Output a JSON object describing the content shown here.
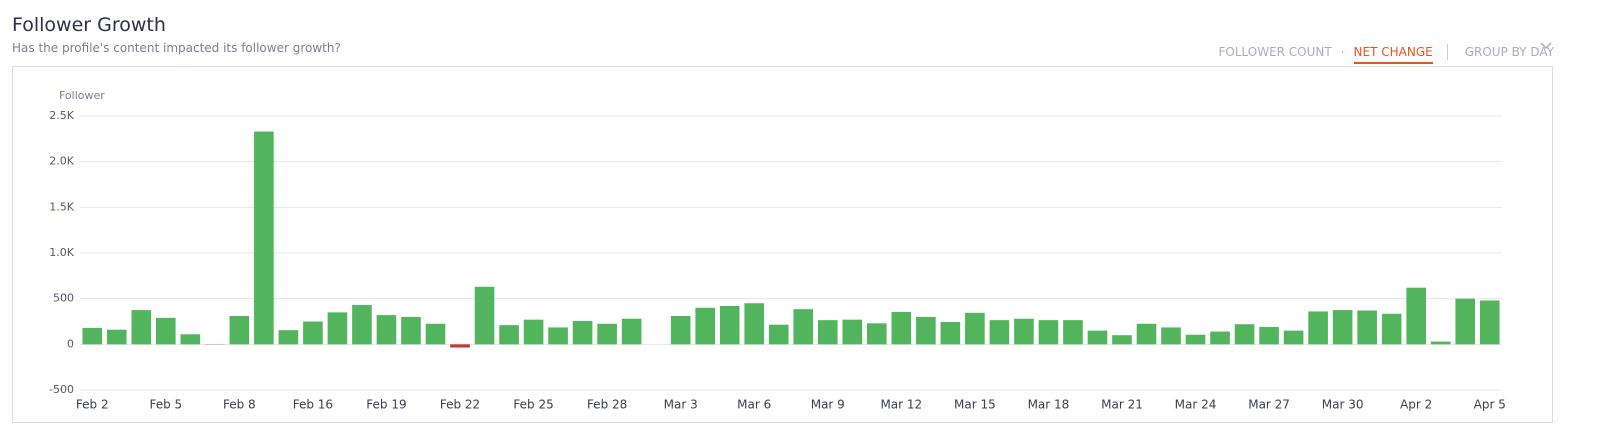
{
  "header": {
    "title": "Follower Growth",
    "subtitle": "Has the profile's content impacted its follower growth?"
  },
  "controls": [
    "FOLLOWER COUNT",
    "·",
    "NET CHANGE",
    "GROUP BY DAY"
  ],
  "chart_data": {
    "type": "bar",
    "y_label": "Follower",
    "categories": [
      "Feb 2",
      null,
      null,
      "Feb 5",
      null,
      null,
      "Feb 8",
      null,
      null,
      "Feb 16",
      null,
      null,
      "Feb 19",
      null,
      null,
      "Feb 22",
      null,
      null,
      "Feb 25",
      null,
      null,
      "Feb 28",
      null,
      null,
      "Mar 3",
      null,
      null,
      "Mar 6",
      null,
      null,
      "Mar 9",
      null,
      null,
      "Mar 12",
      null,
      null,
      "Mar 15",
      null,
      null,
      "Mar 18",
      null,
      null,
      "Mar 21",
      null,
      null,
      "Mar 24",
      null,
      null,
      "Mar 27",
      null,
      null,
      "Mar 30",
      null,
      null,
      "Apr 2",
      null,
      null,
      "Apr 5"
    ],
    "values": [
      180,
      160,
      375,
      290,
      110,
      -3,
      310,
      2330,
      155,
      250,
      350,
      430,
      320,
      300,
      225,
      -35,
      630,
      210,
      270,
      185,
      255,
      225,
      280,
      0,
      310,
      400,
      420,
      450,
      215,
      385,
      265,
      270,
      230,
      355,
      300,
      245,
      345,
      265,
      280,
      265,
      265,
      150,
      100,
      225,
      185,
      105,
      140,
      220,
      190,
      150,
      360,
      375,
      370,
      335,
      620,
      30,
      500,
      480
    ],
    "color": "#52b55e",
    "negative_color": "#c0392b",
    "ylim": [
      -500,
      2500
    ],
    "yticks": [
      -500,
      0,
      500,
      {
        "value": 1000,
        "label": "1.0K"
      },
      {
        "value": 1500,
        "label": "1.5K"
      },
      {
        "value": 2000,
        "label": "2.0K"
      },
      {
        "value": 2500,
        "label": "2.5K"
      }
    ],
    "grid": true
  }
}
